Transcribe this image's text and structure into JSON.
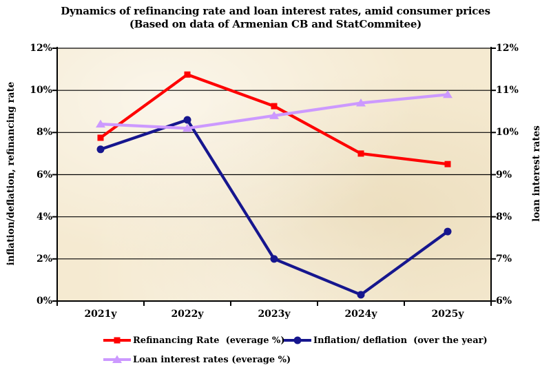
{
  "title": {
    "line1": "Dynamics of refinancing rate and loan interest rates, amid consumer prices",
    "line2": "(Based on data of Armenian CB and StatCommitee)"
  },
  "left_axis": {
    "label": "inflation/deflation, refinancing rate",
    "ticks": [
      "12%",
      "10%",
      "8%",
      "6%",
      "4%",
      "2%",
      "0%"
    ],
    "tick_values": [
      12,
      10,
      8,
      6,
      4,
      2,
      0
    ]
  },
  "right_axis": {
    "label": "loan interest rates",
    "ticks": [
      "12%",
      "11%",
      "10%",
      "9%",
      "8%",
      "7%",
      "6%"
    ],
    "tick_values": [
      12,
      11,
      10,
      9,
      8,
      7,
      6
    ]
  },
  "x_axis": {
    "categories": [
      "2021y",
      "2022y",
      "2023y",
      "2024y",
      "2025y"
    ]
  },
  "legend": [
    {
      "label": "Refinancing Rate  (everage %)",
      "marker": "square",
      "color": "#fe0000"
    },
    {
      "label": "Inflation/ deflation  (over the year)",
      "marker": "circle",
      "color": "#16168e"
    },
    {
      "label": "Loan interest rates (everage %)",
      "marker": "triangle",
      "color": "#cc99ff"
    }
  ],
  "colors": {
    "refinancing": "#fe0000",
    "inflation": "#16168e",
    "loan_rates": "#cc99ff",
    "plot_background": "#f5ead1",
    "gridline": "#000000"
  },
  "chart_data": {
    "type": "line",
    "title": "Dynamics of refinancing rate and loan interest rates, amid consumer prices (Based on data of Armenian CB and StatCommitee)",
    "categories": [
      "2021y",
      "2022y",
      "2023y",
      "2024y",
      "2025y"
    ],
    "series": [
      {
        "name": "Refinancing Rate  (everage %)",
        "axis": "left",
        "marker": "square",
        "color": "#fe0000",
        "values": [
          7.75,
          10.75,
          9.25,
          7.0,
          6.5
        ]
      },
      {
        "name": "Inflation/ deflation  (over the year)",
        "axis": "left",
        "marker": "circle",
        "color": "#16168e",
        "values": [
          7.2,
          8.6,
          2.0,
          0.3,
          3.3
        ]
      },
      {
        "name": "Loan interest rates (everage %)",
        "axis": "right",
        "marker": "triangle",
        "color": "#cc99ff",
        "values": [
          10.2,
          10.1,
          10.4,
          10.7,
          10.9
        ]
      }
    ],
    "left_ylabel": "inflation/deflation, refinancing rate",
    "right_ylabel": "loan interest rates",
    "xlabel": "",
    "left_ylim": [
      0,
      12
    ],
    "right_ylim": [
      6,
      12
    ],
    "grid": true,
    "legend_position": "bottom"
  }
}
